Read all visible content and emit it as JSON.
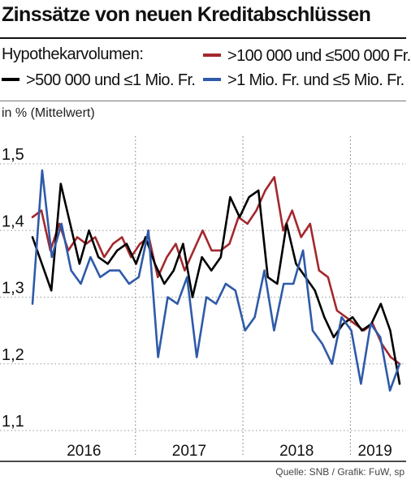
{
  "header": {
    "title": "Zinssätze von neuen Kreditabschlüssen"
  },
  "legend": {
    "heading": "Hypothekarvolumen:",
    "items": [
      {
        "label": ">100 000 und ≤500 000 Fr.",
        "color": "#a3282d",
        "icon": "red-line-swatch"
      },
      {
        "label": ">500 000 und ≤1 Mio. Fr.",
        "color": "#000000",
        "icon": "black-line-swatch"
      },
      {
        "label": ">1 Mio. Fr. und ≤5 Mio. Fr.",
        "color": "#2f5aa8",
        "icon": "blue-line-swatch"
      }
    ]
  },
  "unit_label": "in % (Mittelwert)",
  "source": "Quelle: SNB / Grafik: FuW, sp",
  "chart_data": {
    "type": "line",
    "ylim": [
      1.1,
      1.5
    ],
    "y_ticks": [
      "1,1",
      "1,2",
      "1,3",
      "1,4",
      "1,5"
    ],
    "x_labels": [
      "2016",
      "2017",
      "2018",
      "2019"
    ],
    "x_start": "2016-01",
    "x_end": "2019-06",
    "year_separators": [
      "2016-12",
      "2017-12",
      "2018-12"
    ],
    "grid": true,
    "series": [
      {
        "name": ">100 000 und ≤500 000 Fr.",
        "color": "#a3282d",
        "values": [
          1.42,
          1.43,
          1.37,
          1.41,
          1.37,
          1.39,
          1.38,
          1.39,
          1.36,
          1.38,
          1.39,
          1.36,
          1.38,
          1.39,
          1.33,
          1.36,
          1.38,
          1.34,
          1.37,
          1.4,
          1.37,
          1.37,
          1.38,
          1.42,
          1.41,
          1.43,
          1.46,
          1.48,
          1.4,
          1.43,
          1.39,
          1.41,
          1.34,
          1.33,
          1.28,
          1.27,
          1.26,
          1.25,
          1.26,
          1.23,
          1.21,
          1.2
        ]
      },
      {
        "name": ">500 000 und ≤1 Mio. Fr.",
        "color": "#000000",
        "values": [
          1.39,
          1.35,
          1.31,
          1.47,
          1.41,
          1.35,
          1.4,
          1.36,
          1.35,
          1.37,
          1.38,
          1.35,
          1.39,
          1.35,
          1.32,
          1.34,
          1.38,
          1.3,
          1.36,
          1.34,
          1.36,
          1.45,
          1.42,
          1.45,
          1.46,
          1.33,
          1.32,
          1.41,
          1.35,
          1.33,
          1.31,
          1.27,
          1.24,
          1.26,
          1.27,
          1.25,
          1.26,
          1.29,
          1.25,
          1.17
        ]
      },
      {
        "name": ">1 Mio. Fr. und ≤5 Mio. Fr.",
        "color": "#2f5aa8",
        "values": [
          1.29,
          1.49,
          1.36,
          1.41,
          1.34,
          1.32,
          1.36,
          1.33,
          1.34,
          1.34,
          1.32,
          1.33,
          1.4,
          1.21,
          1.3,
          1.29,
          1.33,
          1.21,
          1.3,
          1.29,
          1.32,
          1.31,
          1.25,
          1.27,
          1.34,
          1.25,
          1.32,
          1.32,
          1.37,
          1.25,
          1.23,
          1.2,
          1.27,
          1.25,
          1.17,
          1.26,
          1.24,
          1.16,
          1.2
        ]
      }
    ]
  }
}
